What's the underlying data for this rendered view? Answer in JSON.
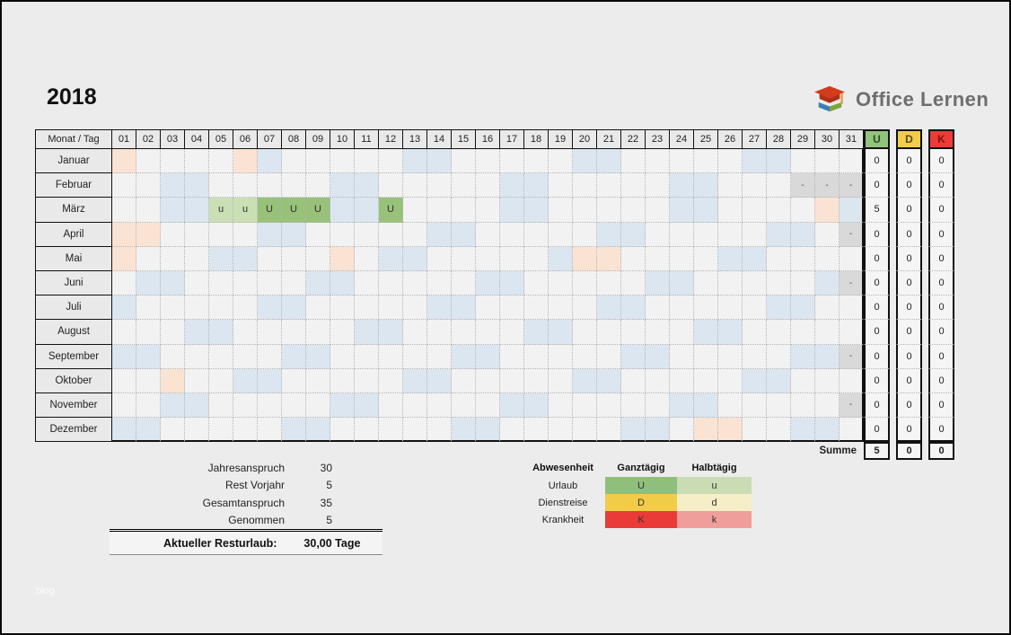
{
  "page": {
    "year_title": "2018",
    "watermark": "blog"
  },
  "logo": {
    "text": "Office Lernen",
    "icon": "graduation-cap-books-icon"
  },
  "calendar": {
    "corner_label": "Monat / Tag",
    "day_headers": [
      "01",
      "02",
      "03",
      "04",
      "05",
      "06",
      "07",
      "08",
      "09",
      "10",
      "11",
      "12",
      "13",
      "14",
      "15",
      "16",
      "17",
      "18",
      "19",
      "20",
      "21",
      "22",
      "23",
      "24",
      "25",
      "26",
      "27",
      "28",
      "29",
      "30",
      "31"
    ],
    "summary_headers": [
      {
        "label": "U",
        "bg": "#92c47e",
        "text": "#2f4a20"
      },
      {
        "label": "D",
        "bg": "#f1cd4b",
        "text": "#5c4a10"
      },
      {
        "label": "K",
        "bg": "#ee3b38",
        "text": "#7c140c"
      }
    ],
    "cell_colors": {
      "weekday": "#f2f2f2",
      "weekend": "#dce6f1",
      "holiday": "#fbe3d4",
      "missing": "#d9d9d9",
      "vacation_full": "#98c17a",
      "vacation_half": "#cbdfb4"
    },
    "missing_mark": "-",
    "months": [
      {
        "name": "Januar",
        "days": [
          "H",
          "",
          "",
          "",
          "",
          "H",
          "W",
          "",
          "",
          "",
          "",
          "",
          "W",
          "W",
          "",
          "",
          "",
          "",
          "",
          "W",
          "W",
          "",
          "",
          "",
          "",
          "",
          "W",
          "W",
          "",
          "",
          ""
        ],
        "u": "0",
        "d": "0",
        "k": "0"
      },
      {
        "name": "Februar",
        "days": [
          "",
          "",
          "W",
          "W",
          "",
          "",
          "",
          "",
          "",
          "W",
          "W",
          "",
          "",
          "",
          "",
          "",
          "W",
          "W",
          "",
          "",
          "",
          "",
          "",
          "W",
          "W",
          "",
          "",
          "",
          "X",
          "X",
          "X"
        ],
        "u": "0",
        "d": "0",
        "k": "0"
      },
      {
        "name": "März",
        "days": [
          "",
          "",
          "W",
          "W",
          "u",
          "u",
          "U",
          "U",
          "U",
          "W",
          "W",
          "U",
          "",
          "",
          "",
          "",
          "W",
          "W",
          "",
          "",
          "",
          "",
          "",
          "W",
          "W",
          "",
          "",
          "",
          "",
          "H",
          "W"
        ],
        "u": "5",
        "d": "0",
        "k": "0"
      },
      {
        "name": "April",
        "days": [
          "H",
          "H",
          "",
          "",
          "",
          "",
          "W",
          "W",
          "",
          "",
          "",
          "",
          "",
          "W",
          "W",
          "",
          "",
          "",
          "",
          "",
          "W",
          "W",
          "",
          "",
          "",
          "",
          "",
          "W",
          "W",
          "",
          "X"
        ],
        "u": "0",
        "d": "0",
        "k": "0"
      },
      {
        "name": "Mai",
        "days": [
          "H",
          "",
          "",
          "",
          "W",
          "W",
          "",
          "",
          "",
          "H",
          "",
          "W",
          "W",
          "",
          "",
          "",
          "",
          "",
          "W",
          "H",
          "H",
          "",
          "",
          "",
          "",
          "W",
          "W",
          "",
          "",
          "",
          ""
        ],
        "u": "0",
        "d": "0",
        "k": "0"
      },
      {
        "name": "Juni",
        "days": [
          "",
          "W",
          "W",
          "",
          "",
          "",
          "",
          "",
          "W",
          "W",
          "",
          "",
          "",
          "",
          "",
          "W",
          "W",
          "",
          "",
          "",
          "",
          "",
          "W",
          "W",
          "",
          "",
          "",
          "",
          "",
          "W",
          "X"
        ],
        "u": "0",
        "d": "0",
        "k": "0"
      },
      {
        "name": "Juli",
        "days": [
          "W",
          "",
          "",
          "",
          "",
          "",
          "W",
          "W",
          "",
          "",
          "",
          "",
          "",
          "W",
          "W",
          "",
          "",
          "",
          "",
          "",
          "W",
          "W",
          "",
          "",
          "",
          "",
          "",
          "W",
          "W",
          "",
          ""
        ],
        "u": "0",
        "d": "0",
        "k": "0"
      },
      {
        "name": "August",
        "days": [
          "",
          "",
          "",
          "W",
          "W",
          "",
          "",
          "",
          "",
          "",
          "W",
          "W",
          "",
          "",
          "",
          "",
          "",
          "W",
          "W",
          "",
          "",
          "",
          "",
          "",
          "W",
          "W",
          "",
          "",
          "",
          "",
          ""
        ],
        "u": "0",
        "d": "0",
        "k": "0"
      },
      {
        "name": "September",
        "days": [
          "W",
          "W",
          "",
          "",
          "",
          "",
          "",
          "W",
          "W",
          "",
          "",
          "",
          "",
          "",
          "W",
          "W",
          "",
          "",
          "",
          "",
          "",
          "W",
          "W",
          "",
          "",
          "",
          "",
          "",
          "W",
          "W",
          "X"
        ],
        "u": "0",
        "d": "0",
        "k": "0"
      },
      {
        "name": "Oktober",
        "days": [
          "",
          "",
          "H",
          "",
          "",
          "W",
          "W",
          "",
          "",
          "",
          "",
          "",
          "W",
          "W",
          "",
          "",
          "",
          "",
          "",
          "W",
          "W",
          "",
          "",
          "",
          "",
          "",
          "W",
          "W",
          "",
          "",
          ""
        ],
        "u": "0",
        "d": "0",
        "k": "0"
      },
      {
        "name": "November",
        "days": [
          "",
          "",
          "W",
          "W",
          "",
          "",
          "",
          "",
          "",
          "W",
          "W",
          "",
          "",
          "",
          "",
          "",
          "W",
          "W",
          "",
          "",
          "",
          "",
          "",
          "W",
          "W",
          "",
          "",
          "",
          "",
          "",
          "X"
        ],
        "u": "0",
        "d": "0",
        "k": "0"
      },
      {
        "name": "Dezember",
        "days": [
          "W",
          "W",
          "",
          "",
          "",
          "",
          "",
          "W",
          "W",
          "",
          "",
          "",
          "",
          "",
          "W",
          "W",
          "",
          "",
          "",
          "",
          "",
          "W",
          "W",
          "",
          "H",
          "H",
          "",
          "",
          "W",
          "W",
          ""
        ],
        "u": "0",
        "d": "0",
        "k": "0"
      }
    ],
    "summe": {
      "label": "Summe",
      "u": "5",
      "d": "0",
      "k": "0"
    }
  },
  "stats": {
    "rows": [
      {
        "label": "Jahresanspruch",
        "value": "30"
      },
      {
        "label": "Rest Vorjahr",
        "value": "5"
      },
      {
        "label": "Gesamtanspruch",
        "value": "35"
      },
      {
        "label": "Genommen",
        "value": "5"
      }
    ],
    "result_label": "Aktueller Resturlaub:",
    "result_value": "30,00 Tage"
  },
  "legend": {
    "col_absence": "Abwesenheit",
    "col_full": "Ganztägig",
    "col_half": "Halbtägig",
    "rows": [
      {
        "label": "Urlaub",
        "full": "U",
        "half": "u",
        "full_bg": "#90bf7b",
        "half_bg": "#c9dcb4"
      },
      {
        "label": "Dienstreise",
        "full": "D",
        "half": "d",
        "full_bg": "#f1cc49",
        "half_bg": "#f6eec6"
      },
      {
        "label": "Krankheit",
        "full": "K",
        "half": "k",
        "full_bg": "#ea3b38",
        "half_bg": "#f09e9c"
      }
    ]
  }
}
